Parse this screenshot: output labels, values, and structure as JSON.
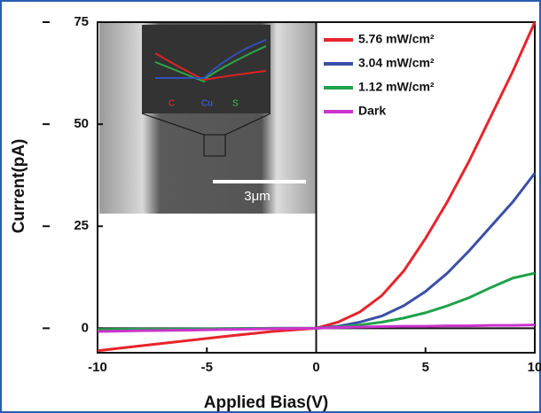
{
  "chart_data": {
    "type": "line",
    "xlabel": "Applied Bias(V)",
    "ylabel": "Current(pA)",
    "x": [
      -10,
      -8,
      -6,
      -4,
      -2,
      0,
      1,
      2,
      3,
      4,
      5,
      6,
      7,
      8,
      9,
      10
    ],
    "series": [
      {
        "name": "5.76 mW/cm²",
        "color": "#e8242b",
        "values": [
          -5.5,
          -4.3,
          -3.1,
          -1.9,
          -0.8,
          0,
          1.5,
          4,
          8,
          14,
          22,
          31,
          41,
          52,
          63,
          75
        ]
      },
      {
        "name": "3.04 mW/cm²",
        "color": "#3a4fa8",
        "values": [
          -0.4,
          -0.3,
          -0.2,
          -0.1,
          0,
          0,
          0.5,
          1.5,
          3,
          5.5,
          9,
          13.5,
          19,
          25,
          31,
          38
        ]
      },
      {
        "name": "1.12 mW/cm²",
        "color": "#1fa24a",
        "values": [
          -0.3,
          -0.2,
          -0.2,
          -0.1,
          0,
          0,
          0.3,
          0.8,
          1.5,
          2.5,
          3.8,
          5.5,
          7.5,
          10,
          12.3,
          13.5
        ]
      },
      {
        "name": "Dark",
        "color": "#cc33cc",
        "values": [
          -0.8,
          -0.6,
          -0.5,
          -0.3,
          -0.1,
          0,
          0.2,
          0.3,
          0.4,
          0.5,
          0.5,
          0.6,
          0.6,
          0.7,
          0.7,
          0.8
        ]
      }
    ],
    "xlim": [
      -10,
      10
    ],
    "xticks": [
      -10,
      -5,
      0,
      5,
      10
    ],
    "ylim": [
      -6,
      75
    ],
    "yticks": [
      0,
      25,
      50,
      75
    ],
    "legend": "upper right",
    "inset_labels": [
      "3μm",
      "C",
      "Cu",
      "S"
    ]
  }
}
